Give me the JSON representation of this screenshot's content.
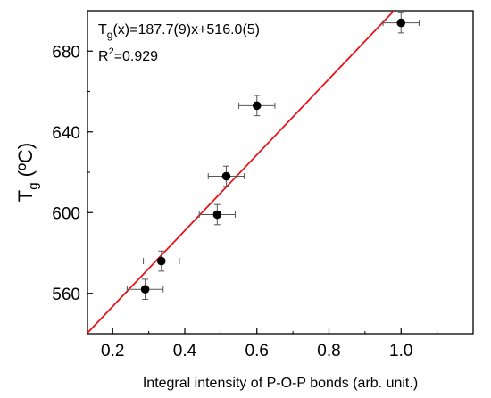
{
  "chart_data": {
    "type": "scatter",
    "x_axis": {
      "label": "Integral intensity of P-O-P bonds (arb. unit.)",
      "range": [
        0.13,
        1.2
      ],
      "ticks": [
        0.2,
        0.4,
        0.6,
        0.8,
        1.0
      ],
      "tick_labels": [
        "0.2",
        "0.4",
        "0.6",
        "0.8",
        "1.0"
      ]
    },
    "y_axis": {
      "label_main": "T",
      "label_sub": "g",
      "label_rest": " (ºC)",
      "range": [
        540,
        700
      ],
      "ticks": [
        560,
        600,
        640,
        680
      ],
      "tick_labels": [
        "560",
        "600",
        "640",
        "680"
      ]
    },
    "annotation": {
      "line1_pre": "T",
      "line1_sub": "g",
      "line1_post": "(x)=187.7(9)x+516.0(5)",
      "line2_pre": "R",
      "line2_sup": "2",
      "line2_post": "=0.929"
    },
    "points": [
      {
        "x": 0.29,
        "y": 562,
        "xerr": 0.05,
        "yerr": 5
      },
      {
        "x": 0.335,
        "y": 576,
        "xerr": 0.05,
        "yerr": 5
      },
      {
        "x": 0.49,
        "y": 599,
        "xerr": 0.05,
        "yerr": 5
      },
      {
        "x": 0.515,
        "y": 618,
        "xerr": 0.05,
        "yerr": 5
      },
      {
        "x": 0.6,
        "y": 653,
        "xerr": 0.05,
        "yerr": 5
      },
      {
        "x": 1.0,
        "y": 694,
        "xerr": 0.05,
        "yerr": 5
      }
    ],
    "fit": {
      "slope": 187.7,
      "intercept": 516.0,
      "color": "#e8141a"
    },
    "marker_color": "#000000",
    "grid": false
  }
}
